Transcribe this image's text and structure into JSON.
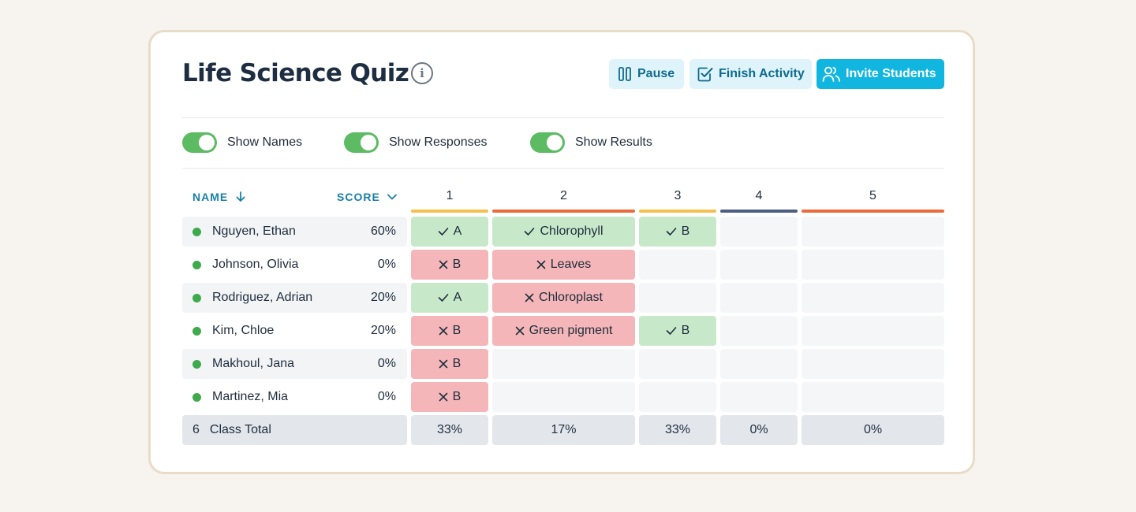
{
  "header": {
    "title": "Life Science Quiz",
    "info_icon": "info-icon",
    "buttons": {
      "pause": "Pause",
      "finish": "Finish Activity",
      "invite": "Invite Students"
    }
  },
  "toggles": [
    {
      "label": "Show Names",
      "on": true
    },
    {
      "label": "Show Responses",
      "on": true
    },
    {
      "label": "Show Results",
      "on": true
    }
  ],
  "table": {
    "name_header": "NAME",
    "score_header": "SCORE",
    "questions": [
      {
        "label": "1",
        "color": "#f2c14e"
      },
      {
        "label": "2",
        "color": "#ec6b3c"
      },
      {
        "label": "3",
        "color": "#f2c14e"
      },
      {
        "label": "4",
        "color": "#4d5f82"
      },
      {
        "label": "5",
        "color": "#ec6b3c"
      }
    ],
    "rows": [
      {
        "name": "Nguyen, Ethan",
        "score": "60%",
        "answers": [
          {
            "text": "A",
            "status": "correct"
          },
          {
            "text": "Chlorophyll",
            "status": "correct"
          },
          {
            "text": "B",
            "status": "correct"
          },
          {
            "text": "",
            "status": "empty"
          },
          {
            "text": "",
            "status": "empty"
          }
        ]
      },
      {
        "name": "Johnson, Olivia",
        "score": "0%",
        "answers": [
          {
            "text": "B",
            "status": "wrong"
          },
          {
            "text": "Leaves",
            "status": "wrong"
          },
          {
            "text": "",
            "status": "empty"
          },
          {
            "text": "",
            "status": "empty"
          },
          {
            "text": "",
            "status": "empty"
          }
        ]
      },
      {
        "name": "Rodriguez, Adrian",
        "score": "20%",
        "answers": [
          {
            "text": "A",
            "status": "correct"
          },
          {
            "text": "Chloroplast",
            "status": "wrong"
          },
          {
            "text": "",
            "status": "empty"
          },
          {
            "text": "",
            "status": "empty"
          },
          {
            "text": "",
            "status": "empty"
          }
        ]
      },
      {
        "name": "Kim, Chloe",
        "score": "20%",
        "answers": [
          {
            "text": "B",
            "status": "wrong"
          },
          {
            "text": "Green pigment",
            "status": "wrong"
          },
          {
            "text": "B",
            "status": "correct"
          },
          {
            "text": "",
            "status": "empty"
          },
          {
            "text": "",
            "status": "empty"
          }
        ]
      },
      {
        "name": "Makhoul, Jana",
        "score": "0%",
        "answers": [
          {
            "text": "B",
            "status": "wrong"
          },
          {
            "text": "",
            "status": "empty"
          },
          {
            "text": "",
            "status": "empty"
          },
          {
            "text": "",
            "status": "empty"
          },
          {
            "text": "",
            "status": "empty"
          }
        ]
      },
      {
        "name": "Martinez, Mia",
        "score": "0%",
        "answers": [
          {
            "text": "B",
            "status": "wrong"
          },
          {
            "text": "",
            "status": "empty"
          },
          {
            "text": "",
            "status": "empty"
          },
          {
            "text": "",
            "status": "empty"
          },
          {
            "text": "",
            "status": "empty"
          }
        ]
      }
    ],
    "total": {
      "count": "6",
      "label": "Class Total",
      "values": [
        "33%",
        "17%",
        "33%",
        "0%",
        "0%"
      ]
    }
  },
  "colors": {
    "accent": "#10b6e0",
    "toggle_on": "#5dbb63",
    "correct": "#c8e8ca",
    "wrong": "#f4b6b8",
    "online_dot": "#3faa4c"
  }
}
